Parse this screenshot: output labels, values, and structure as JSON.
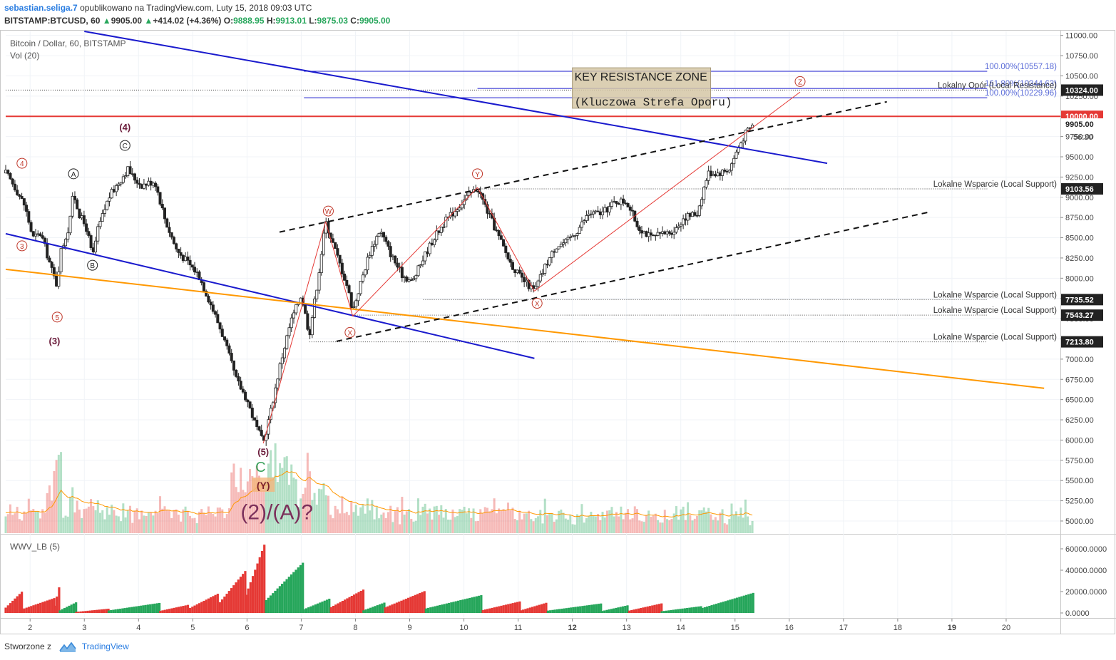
{
  "header": {
    "username": "sebastian.seliga.7",
    "published_text": "opublikowano na TradingView.com, Luty 15, 2018 09:03 UTC",
    "symbol": "BITSTAMP:BTCUSD, 60",
    "last": "9905.00",
    "change": "+414.02 (+4.36%)",
    "o_label": "O:",
    "o_value": "9888.95",
    "h_label": "H:",
    "h_value": "9913.01",
    "l_label": "L:",
    "l_value": "9875.03",
    "c_label": "C:",
    "c_value": "9905.00"
  },
  "legend": {
    "title": "Bitcoin / Dollar, 60, BITSTAMP",
    "vol": "Vol (20)",
    "wwv": "WWV_LB (5)"
  },
  "footer": {
    "created": "Stworzone z",
    "brand": "TradingView"
  },
  "colors": {
    "bull": "#26a65b",
    "bear": "#e53935",
    "red_line": "#e53935",
    "blue_line": "#1a1acd",
    "orange_line": "#ff9800",
    "fib_text": "#5b6cd8"
  },
  "chart_data": {
    "type": "candlestick",
    "price_axis": {
      "range": [
        4850,
        11050
      ],
      "ticks": [
        "11000.00",
        "10750.00",
        "10500.00",
        "10250.00",
        "10000.00",
        "9750.00",
        "9500.00",
        "9250.00",
        "9000.00",
        "8750.00",
        "8500.00",
        "8250.00",
        "8000.00",
        "7750.00",
        "7500.00",
        "7250.00",
        "7000.00",
        "6750.00",
        "6500.00",
        "6250.00",
        "6000.00",
        "5750.00",
        "5500.00",
        "5250.00",
        "5000.00"
      ],
      "highlight_labels": [
        {
          "price": 10324,
          "text": "10324.00",
          "style": "dark"
        },
        {
          "price": 10000,
          "text": "10000.00",
          "style": "red"
        },
        {
          "price": 9905,
          "text": "9905.00",
          "style": "plain"
        },
        {
          "price": 9103.56,
          "text": "9103.56",
          "style": "dark"
        },
        {
          "price": 7735.52,
          "text": "7735.52",
          "style": "dark"
        },
        {
          "price": 7543.27,
          "text": "7543.27",
          "style": "dark"
        },
        {
          "price": 7213.8,
          "text": "7213.80",
          "style": "dark"
        }
      ],
      "countdown": "56:30"
    },
    "time_axis": {
      "labels": [
        {
          "t": 2,
          "text": "2",
          "bold": false
        },
        {
          "t": 3,
          "text": "3",
          "bold": false
        },
        {
          "t": 4,
          "text": "4",
          "bold": false
        },
        {
          "t": 5,
          "text": "5",
          "bold": false
        },
        {
          "t": 6,
          "text": "6",
          "bold": false
        },
        {
          "t": 7,
          "text": "7",
          "bold": false
        },
        {
          "t": 8,
          "text": "8",
          "bold": false
        },
        {
          "t": 9,
          "text": "9",
          "bold": false
        },
        {
          "t": 10,
          "text": "10",
          "bold": false
        },
        {
          "t": 11,
          "text": "11",
          "bold": false
        },
        {
          "t": 12,
          "text": "12",
          "bold": true
        },
        {
          "t": 13,
          "text": "13",
          "bold": false
        },
        {
          "t": 14,
          "text": "14",
          "bold": false
        },
        {
          "t": 15,
          "text": "15",
          "bold": false
        },
        {
          "t": 16,
          "text": "16",
          "bold": false
        },
        {
          "t": 17,
          "text": "17",
          "bold": false
        },
        {
          "t": 18,
          "text": "18",
          "bold": false
        },
        {
          "t": 19,
          "text": "19",
          "bold": true
        },
        {
          "t": 20,
          "text": "20",
          "bold": false
        }
      ],
      "range": [
        1.55,
        21.0
      ]
    },
    "price_path": [
      [
        1.55,
        9300
      ],
      [
        1.7,
        9150
      ],
      [
        1.9,
        8900
      ],
      [
        2.05,
        8500
      ],
      [
        2.2,
        8550
      ],
      [
        2.4,
        8100
      ],
      [
        2.5,
        7900
      ],
      [
        2.55,
        8300
      ],
      [
        2.7,
        8600
      ],
      [
        2.8,
        9050
      ],
      [
        2.9,
        8800
      ],
      [
        3.05,
        8600
      ],
      [
        3.15,
        8250
      ],
      [
        3.25,
        8600
      ],
      [
        3.45,
        9000
      ],
      [
        3.6,
        9150
      ],
      [
        3.8,
        9350
      ],
      [
        3.9,
        9250
      ],
      [
        4.05,
        9150
      ],
      [
        4.3,
        9200
      ],
      [
        4.5,
        8700
      ],
      [
        4.7,
        8350
      ],
      [
        4.9,
        8200
      ],
      [
        5.1,
        8050
      ],
      [
        5.35,
        7650
      ],
      [
        5.55,
        7300
      ],
      [
        5.8,
        6750
      ],
      [
        6.0,
        6500
      ],
      [
        6.15,
        6200
      ],
      [
        6.3,
        5960
      ],
      [
        6.45,
        6400
      ],
      [
        6.6,
        6900
      ],
      [
        6.8,
        7450
      ],
      [
        7.0,
        7800
      ],
      [
        7.15,
        7300
      ],
      [
        7.3,
        7950
      ],
      [
        7.45,
        8700
      ],
      [
        7.65,
        8300
      ],
      [
        7.85,
        7900
      ],
      [
        7.95,
        7600
      ],
      [
        8.1,
        7950
      ],
      [
        8.25,
        8300
      ],
      [
        8.45,
        8600
      ],
      [
        8.65,
        8300
      ],
      [
        8.85,
        8050
      ],
      [
        9.05,
        7950
      ],
      [
        9.25,
        8250
      ],
      [
        9.45,
        8500
      ],
      [
        9.65,
        8700
      ],
      [
        9.85,
        8850
      ],
      [
        10.05,
        9000
      ],
      [
        10.25,
        9120
      ],
      [
        10.45,
        8800
      ],
      [
        10.65,
        8500
      ],
      [
        10.85,
        8200
      ],
      [
        11.05,
        8000
      ],
      [
        11.3,
        7840
      ],
      [
        11.5,
        8150
      ],
      [
        11.7,
        8400
      ],
      [
        11.9,
        8450
      ],
      [
        12.1,
        8600
      ],
      [
        12.3,
        8800
      ],
      [
        12.55,
        8800
      ],
      [
        12.8,
        8950
      ],
      [
        13.0,
        8950
      ],
      [
        13.2,
        8650
      ],
      [
        13.45,
        8500
      ],
      [
        13.7,
        8550
      ],
      [
        13.9,
        8600
      ],
      [
        14.05,
        8750
      ],
      [
        14.3,
        8800
      ],
      [
        14.5,
        9300
      ],
      [
        14.7,
        9300
      ],
      [
        14.9,
        9350
      ],
      [
        15.05,
        9600
      ],
      [
        15.2,
        9800
      ],
      [
        15.35,
        9905
      ]
    ],
    "horizontal_levels": [
      {
        "price": 10557.18,
        "from": 7.05,
        "to": 19.65,
        "color": "#1a1acd",
        "label": "100.00%(10557.18)",
        "label_color": "#5b6cd8"
      },
      {
        "price": 10344.63,
        "from": 10.25,
        "to": 19.65,
        "color": "#1a1acd",
        "label": "161.80%(10344.63)",
        "label_color": "#5b6cd8"
      },
      {
        "price": 10229.96,
        "from": 7.05,
        "to": 19.65,
        "color": "#1a1acd",
        "label": "100.00%(10229.96)",
        "label_color": "#5b6cd8"
      },
      {
        "price": 10324,
        "from": 1.55,
        "to": 19.65,
        "color": "#444",
        "dotted": true,
        "label": "Lokalny Opór (Local Resistance)",
        "label_color": "#333"
      },
      {
        "price": 10000,
        "from": 1.55,
        "to": 21.0,
        "color": "#e53935",
        "width": 2
      },
      {
        "price": 9103.56,
        "from": 10.25,
        "to": 19.65,
        "color": "#444",
        "dotted": true,
        "label": "Lokalne Wsparcie (Local Support)",
        "label_color": "#333"
      },
      {
        "price": 7735.52,
        "from": 9.25,
        "to": 19.65,
        "color": "#444",
        "dotted": true,
        "label": "Lokalne Wsparcie (Local Support)",
        "label_color": "#333"
      },
      {
        "price": 7543.27,
        "from": 7.95,
        "to": 19.65,
        "color": "#444",
        "dotted": true,
        "label": "Lokalne Wsparcie (Local Support)",
        "label_color": "#333"
      },
      {
        "price": 7213.8,
        "from": 7.15,
        "to": 19.65,
        "color": "#444",
        "dotted": true,
        "label": "Lokalne Wsparcie (Local Support)",
        "label_color": "#333"
      }
    ],
    "trend_lines": [
      {
        "name": "blue-descending-upper",
        "p1": [
          3.0,
          11050
        ],
        "p2": [
          16.7,
          9420
        ],
        "color": "#1a1acd",
        "width": 2
      },
      {
        "name": "blue-descending-lower",
        "p1": [
          1.55,
          8550
        ],
        "p2": [
          11.3,
          7010
        ],
        "color": "#1a1acd",
        "width": 2
      },
      {
        "name": "orange-descending",
        "p1": [
          1.55,
          8110
        ],
        "p2": [
          20.7,
          6640
        ],
        "color": "#ff9800",
        "width": 2
      },
      {
        "name": "channel-upper",
        "p1": [
          6.6,
          8570
        ],
        "p2": [
          17.8,
          10180
        ],
        "color": "#111",
        "width": 2,
        "dashed": true
      },
      {
        "name": "channel-lower",
        "p1": [
          7.65,
          7220
        ],
        "p2": [
          18.6,
          8820
        ],
        "color": "#111",
        "width": 2,
        "dashed": true
      },
      {
        "name": "red-wave-1",
        "p1": [
          6.3,
          5960
        ],
        "p2": [
          7.45,
          8700
        ],
        "color": "#e53935",
        "width": 1
      },
      {
        "name": "red-wave-2",
        "p1": [
          7.45,
          8700
        ],
        "p2": [
          7.95,
          7530
        ],
        "color": "#e53935",
        "width": 1
      },
      {
        "name": "red-wave-3",
        "p1": [
          7.95,
          7530
        ],
        "p2": [
          10.25,
          9120
        ],
        "color": "#e53935",
        "width": 1
      },
      {
        "name": "red-wave-4",
        "p1": [
          10.25,
          9120
        ],
        "p2": [
          11.3,
          7840
        ],
        "color": "#e53935",
        "width": 1
      },
      {
        "name": "red-wave-5",
        "p1": [
          11.3,
          7840
        ],
        "p2": [
          16.2,
          10300
        ],
        "color": "#e53935",
        "width": 1
      }
    ],
    "wave_labels": [
      {
        "text": "4",
        "t": 1.85,
        "price": 9420,
        "style": "circle-red"
      },
      {
        "text": "3",
        "t": 1.85,
        "price": 8400,
        "style": "circle-red"
      },
      {
        "text": "5",
        "t": 2.5,
        "price": 7520,
        "style": "circle-red"
      },
      {
        "text": "(3)",
        "t": 2.45,
        "price": 7230,
        "style": "plain-dark"
      },
      {
        "text": "(4)",
        "t": 3.75,
        "price": 9870,
        "style": "plain-dark"
      },
      {
        "text": "C",
        "t": 3.75,
        "price": 9640,
        "style": "circle-black"
      },
      {
        "text": "A",
        "t": 2.8,
        "price": 9290,
        "style": "circle-black"
      },
      {
        "text": "B",
        "t": 3.15,
        "price": 8160,
        "style": "circle-black"
      },
      {
        "text": "W",
        "t": 7.5,
        "price": 8830,
        "style": "circle-red"
      },
      {
        "text": "X",
        "t": 7.9,
        "price": 7330,
        "style": "circle-red"
      },
      {
        "text": "Y",
        "t": 10.25,
        "price": 9290,
        "style": "circle-red"
      },
      {
        "text": "X",
        "t": 11.35,
        "price": 7690,
        "style": "circle-red"
      },
      {
        "text": "Z",
        "t": 16.2,
        "price": 10430,
        "style": "circle-red"
      },
      {
        "text": "(5)",
        "t": 6.3,
        "price": 5860,
        "style": "plain-dark"
      },
      {
        "text": "C",
        "t": 6.25,
        "price": 5670,
        "style": "plain-green"
      },
      {
        "text": "(Y)",
        "t": 6.3,
        "price": 5440,
        "style": "box-y"
      },
      {
        "text": "(2)/(A)?",
        "t": 6.55,
        "price": 5120,
        "style": "big"
      }
    ],
    "annotation_box": {
      "t1": 12.0,
      "t2": 14.55,
      "p1": 10600,
      "p2": 10100,
      "line1": "KEY RESISTANCE ZONE",
      "line2": "(Kluczowa Strefa Oporu)"
    },
    "volume_axis_range": [
      0,
      16000
    ],
    "wwv_axis": {
      "range": [
        -4000,
        72000
      ],
      "ticks": [
        "60000.0000",
        "40000.0000",
        "20000.0000",
        "0.0000"
      ],
      "tick_values": [
        60000,
        40000,
        20000,
        0
      ]
    },
    "wwv_segments": [
      {
        "t1": 1.55,
        "t2": 1.85,
        "peak": 20000,
        "color": "#e53935"
      },
      {
        "t1": 1.85,
        "t2": 2.45,
        "peak": 14000,
        "color": "#e53935"
      },
      {
        "t1": 2.45,
        "t2": 2.55,
        "peak": 27000,
        "color": "#e53935"
      },
      {
        "t1": 2.55,
        "t2": 2.85,
        "peak": 10000,
        "color": "#26a65b"
      },
      {
        "t1": 2.85,
        "t2": 3.45,
        "peak": 4000,
        "color": "#e53935"
      },
      {
        "t1": 3.45,
        "t2": 4.4,
        "peak": 9500,
        "color": "#26a65b"
      },
      {
        "t1": 4.4,
        "t2": 4.95,
        "peak": 8000,
        "color": "#e53935"
      },
      {
        "t1": 4.95,
        "t2": 5.5,
        "peak": 19000,
        "color": "#e53935"
      },
      {
        "t1": 5.5,
        "t2": 5.98,
        "peak": 40000,
        "color": "#e53935"
      },
      {
        "t1": 5.98,
        "t2": 6.35,
        "peak": 68000,
        "color": "#e53935"
      },
      {
        "t1": 6.35,
        "t2": 7.05,
        "peak": 48000,
        "color": "#26a65b"
      },
      {
        "t1": 7.05,
        "t2": 7.55,
        "peak": 14000,
        "color": "#26a65b"
      },
      {
        "t1": 7.55,
        "t2": 8.15,
        "peak": 22000,
        "color": "#e53935"
      },
      {
        "t1": 8.15,
        "t2": 8.55,
        "peak": 10000,
        "color": "#26a65b"
      },
      {
        "t1": 8.55,
        "t2": 9.3,
        "peak": 21000,
        "color": "#e53935"
      },
      {
        "t1": 9.3,
        "t2": 10.35,
        "peak": 17000,
        "color": "#26a65b"
      },
      {
        "t1": 10.35,
        "t2": 11.05,
        "peak": 11000,
        "color": "#e53935"
      },
      {
        "t1": 11.05,
        "t2": 11.55,
        "peak": 10000,
        "color": "#e53935"
      },
      {
        "t1": 11.55,
        "t2": 12.55,
        "peak": 9000,
        "color": "#26a65b"
      },
      {
        "t1": 12.55,
        "t2": 13.05,
        "peak": 7500,
        "color": "#26a65b"
      },
      {
        "t1": 13.05,
        "t2": 13.65,
        "peak": 9000,
        "color": "#e53935"
      },
      {
        "t1": 13.65,
        "t2": 14.4,
        "peak": 6500,
        "color": "#26a65b"
      },
      {
        "t1": 14.4,
        "t2": 15.35,
        "peak": 19000,
        "color": "#26a65b"
      }
    ]
  }
}
